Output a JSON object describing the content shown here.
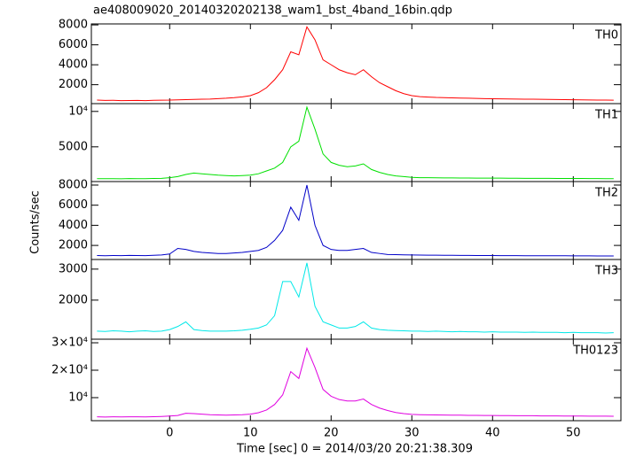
{
  "chart_data": {
    "type": "line",
    "title": "ae408009020_20140320202138_wam1_bst_4band_16bin.qdp",
    "xlabel": "Time [sec] 0 = 2014/03/20 20:21:38.309",
    "ylabel": "Counts/sec",
    "x": [
      -9,
      -8,
      -7,
      -6,
      -5,
      -4,
      -3,
      -2,
      -1,
      0,
      1,
      2,
      3,
      4,
      5,
      6,
      7,
      8,
      9,
      10,
      11,
      12,
      13,
      14,
      15,
      16,
      17,
      18,
      19,
      20,
      21,
      22,
      23,
      24,
      25,
      26,
      27,
      28,
      29,
      30,
      31,
      32,
      33,
      34,
      35,
      36,
      37,
      38,
      39,
      40,
      41,
      42,
      43,
      44,
      45,
      46,
      47,
      48,
      49,
      50,
      51,
      52,
      53,
      54,
      55
    ],
    "xlim": [
      -9.7,
      55.9
    ],
    "xticks": [
      0,
      10,
      20,
      30,
      40,
      50
    ],
    "series": [
      {
        "name": "TH0",
        "color": "#ff0000",
        "ylim": [
          100,
          8100
        ],
        "yticks": [
          2000,
          4000,
          6000,
          8000
        ],
        "values": [
          450,
          420,
          430,
          400,
          410,
          420,
          400,
          430,
          440,
          450,
          480,
          500,
          520,
          540,
          560,
          600,
          640,
          700,
          780,
          900,
          1200,
          1700,
          2500,
          3500,
          5300,
          5000,
          7800,
          6500,
          4500,
          4000,
          3500,
          3200,
          3000,
          3500,
          2800,
          2200,
          1800,
          1400,
          1100,
          900,
          800,
          760,
          720,
          700,
          680,
          660,
          640,
          620,
          600,
          590,
          580,
          570,
          560,
          550,
          540,
          530,
          520,
          510,
          500,
          490,
          480,
          470,
          460,
          450,
          440
        ]
      },
      {
        "name": "TH1",
        "color": "#00e000",
        "ylim": [
          100,
          11100
        ],
        "yticks": [
          5000,
          {
            "value": 10000,
            "label": "10⁴"
          }
        ],
        "values": [
          500,
          510,
          500,
          490,
          520,
          510,
          500,
          530,
          560,
          650,
          800,
          1100,
          1300,
          1200,
          1100,
          1000,
          950,
          900,
          950,
          1000,
          1200,
          1600,
          2000,
          2800,
          5000,
          5800,
          10600,
          7500,
          4000,
          2800,
          2400,
          2200,
          2300,
          2600,
          1800,
          1400,
          1100,
          900,
          800,
          700,
          650,
          640,
          630,
          620,
          610,
          600,
          600,
          590,
          590,
          580,
          580,
          570,
          570,
          560,
          560,
          550,
          550,
          540,
          540,
          530,
          530,
          520,
          520,
          510,
          510
        ]
      },
      {
        "name": "TH2",
        "color": "#0000c8",
        "ylim": [
          600,
          8350
        ],
        "yticks": [
          2000,
          4000,
          6000,
          8000
        ],
        "values": [
          1000,
          980,
          1000,
          990,
          1010,
          1000,
          990,
          1020,
          1050,
          1150,
          1700,
          1600,
          1400,
          1300,
          1250,
          1200,
          1200,
          1250,
          1300,
          1400,
          1500,
          1800,
          2500,
          3500,
          5800,
          4500,
          8000,
          4000,
          2000,
          1600,
          1500,
          1500,
          1600,
          1700,
          1300,
          1200,
          1100,
          1080,
          1060,
          1050,
          1040,
          1030,
          1030,
          1020,
          1020,
          1010,
          1010,
          1000,
          1000,
          1000,
          990,
          990,
          990,
          980,
          980,
          980,
          970,
          970,
          970,
          960,
          960,
          960,
          950,
          950,
          950
        ]
      },
      {
        "name": "TH3",
        "color": "#00e8e8",
        "ylim": [
          740,
          3310
        ],
        "yticks": [
          2000,
          3000
        ],
        "values": [
          1000,
          990,
          1010,
          1000,
          980,
          1000,
          1010,
          990,
          1000,
          1050,
          1150,
          1300,
          1050,
          1020,
          1000,
          1000,
          1000,
          1010,
          1030,
          1060,
          1100,
          1200,
          1500,
          2600,
          2600,
          2100,
          3200,
          1800,
          1300,
          1200,
          1100,
          1100,
          1150,
          1300,
          1100,
          1050,
          1030,
          1020,
          1010,
          1000,
          1000,
          990,
          1000,
          990,
          980,
          990,
          980,
          980,
          970,
          980,
          970,
          970,
          970,
          960,
          970,
          960,
          960,
          960,
          950,
          960,
          950,
          950,
          950,
          940,
          950
        ]
      },
      {
        "name": "TH0123",
        "color": "#e000e0",
        "ylim": [
          1600,
          31300
        ],
        "yticks": [
          {
            "value": 10000,
            "label": "10⁴"
          },
          {
            "value": 20000,
            "label": "2×10⁴"
          },
          {
            "value": 30000,
            "label": "3×10⁴"
          }
        ],
        "values": [
          3000,
          2950,
          3000,
          2980,
          3000,
          3010,
          2990,
          3050,
          3150,
          3300,
          3500,
          4300,
          4200,
          4000,
          3800,
          3700,
          3600,
          3700,
          3800,
          4000,
          4500,
          5500,
          7500,
          11000,
          19500,
          17000,
          28000,
          21000,
          13000,
          10500,
          9300,
          8800,
          8800,
          9500,
          7500,
          6200,
          5300,
          4600,
          4200,
          3900,
          3800,
          3750,
          3700,
          3650,
          3600,
          3600,
          3550,
          3550,
          3500,
          3500,
          3450,
          3450,
          3400,
          3400,
          3400,
          3350,
          3350,
          3350,
          3300,
          3300,
          3300,
          3250,
          3250,
          3250,
          3200
        ]
      }
    ]
  }
}
